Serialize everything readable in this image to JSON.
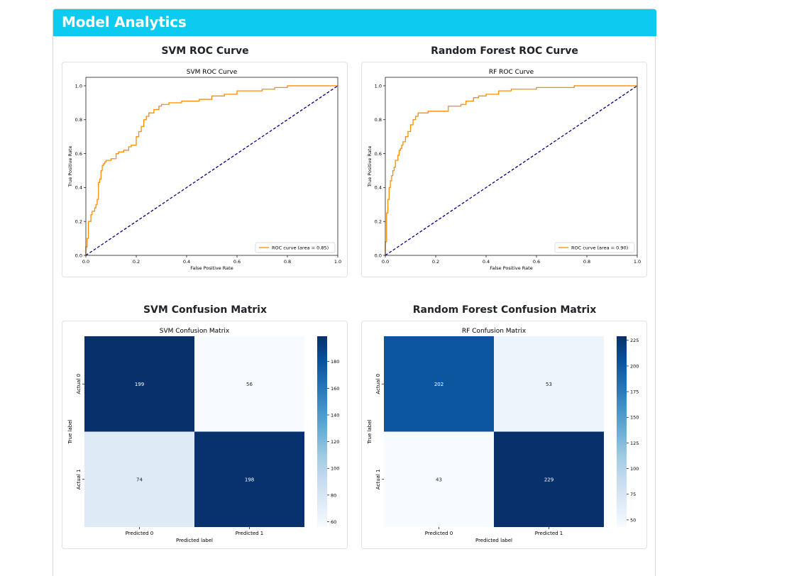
{
  "header": {
    "title": "Model Analytics"
  },
  "sections": {
    "svm_roc_title": "SVM ROC Curve",
    "rf_roc_title": "Random Forest ROC Curve",
    "svm_cm_title": "SVM Confusion Matrix",
    "rf_cm_title": "Random Forest Confusion Matrix"
  },
  "colors": {
    "header_bg": "#0dcaf0",
    "roc_line": "#ff8c00",
    "diagonal": "#000080"
  },
  "chart_data": [
    {
      "type": "line",
      "id": "svm_roc",
      "title": "SVM ROC Curve",
      "xlabel": "False Positive Rate",
      "ylabel": "True Positive Rate",
      "xlim": [
        0,
        1
      ],
      "ylim": [
        0,
        1.05
      ],
      "x_ticks": [
        "0.0",
        "0.2",
        "0.4",
        "0.6",
        "0.8",
        "1.0"
      ],
      "y_ticks": [
        "0.0",
        "0.2",
        "0.4",
        "0.6",
        "0.8",
        "1.0"
      ],
      "legend": "lower right",
      "series": [
        {
          "name": "ROC curve (area = 0.85)",
          "x": [
            0,
            0,
            0.005,
            0.01,
            0.01,
            0.02,
            0.025,
            0.035,
            0.04,
            0.045,
            0.05,
            0.05,
            0.055,
            0.06,
            0.065,
            0.07,
            0.075,
            0.08,
            0.09,
            0.1,
            0.12,
            0.13,
            0.15,
            0.17,
            0.18,
            0.2,
            0.21,
            0.22,
            0.23,
            0.24,
            0.25,
            0.27,
            0.29,
            0.3,
            0.33,
            0.35,
            0.38,
            0.4,
            0.45,
            0.5,
            0.55,
            0.6,
            0.65,
            0.7,
            0.75,
            0.8,
            0.9,
            1.0
          ],
          "y": [
            0,
            0.05,
            0.1,
            0.15,
            0.2,
            0.24,
            0.26,
            0.28,
            0.3,
            0.33,
            0.38,
            0.43,
            0.45,
            0.5,
            0.53,
            0.54,
            0.55,
            0.56,
            0.56,
            0.57,
            0.6,
            0.61,
            0.62,
            0.64,
            0.65,
            0.7,
            0.73,
            0.76,
            0.8,
            0.82,
            0.84,
            0.86,
            0.88,
            0.89,
            0.9,
            0.9,
            0.91,
            0.91,
            0.92,
            0.94,
            0.95,
            0.97,
            0.97,
            0.98,
            0.99,
            1.0,
            1.0,
            1.0
          ]
        },
        {
          "name": "",
          "x": [
            0,
            1
          ],
          "y": [
            0,
            1
          ],
          "style": "dashed"
        }
      ]
    },
    {
      "type": "line",
      "id": "rf_roc",
      "title": "RF ROC Curve",
      "xlabel": "False Positive Rate",
      "ylabel": "True Positive Rate",
      "xlim": [
        0,
        1
      ],
      "ylim": [
        0,
        1.05
      ],
      "x_ticks": [
        "0.0",
        "0.2",
        "0.4",
        "0.6",
        "0.8",
        "1.0"
      ],
      "y_ticks": [
        "0.0",
        "0.2",
        "0.4",
        "0.6",
        "0.8",
        "1.0"
      ],
      "legend": "lower right",
      "series": [
        {
          "name": "ROC curve (area = 0.90)",
          "x": [
            0,
            0,
            0.005,
            0.005,
            0.01,
            0.015,
            0.02,
            0.025,
            0.03,
            0.035,
            0.04,
            0.05,
            0.055,
            0.06,
            0.065,
            0.07,
            0.08,
            0.09,
            0.1,
            0.11,
            0.12,
            0.13,
            0.15,
            0.17,
            0.2,
            0.25,
            0.3,
            0.32,
            0.35,
            0.37,
            0.4,
            0.45,
            0.5,
            0.55,
            0.6,
            0.75,
            1.0
          ],
          "y": [
            0,
            0.08,
            0.18,
            0.25,
            0.33,
            0.4,
            0.44,
            0.47,
            0.5,
            0.52,
            0.56,
            0.59,
            0.62,
            0.63,
            0.65,
            0.67,
            0.7,
            0.73,
            0.77,
            0.8,
            0.82,
            0.84,
            0.84,
            0.85,
            0.85,
            0.88,
            0.89,
            0.91,
            0.93,
            0.94,
            0.95,
            0.97,
            0.98,
            0.98,
            0.99,
            1.0,
            1.0
          ]
        },
        {
          "name": "",
          "x": [
            0,
            1
          ],
          "y": [
            0,
            1
          ],
          "style": "dashed"
        }
      ]
    },
    {
      "type": "heatmap",
      "id": "svm_cm",
      "title": "SVM Confusion Matrix",
      "xlabel": "Predicted label",
      "ylabel": "True label",
      "x_categories": [
        "Predicted 0",
        "Predicted 1"
      ],
      "y_categories": [
        "Actual 0",
        "Actual 1"
      ],
      "values": [
        [
          199,
          56
        ],
        [
          74,
          198
        ]
      ],
      "colorbar_ticks": [
        60,
        80,
        100,
        120,
        140,
        160,
        180
      ],
      "colorbar_range": [
        56,
        199
      ],
      "colormap": "Blues"
    },
    {
      "type": "heatmap",
      "id": "rf_cm",
      "title": "RF Confusion Matrix",
      "xlabel": "Predicted label",
      "ylabel": "True label",
      "x_categories": [
        "Predicted 0",
        "Predicted 1"
      ],
      "y_categories": [
        "Actual 0",
        "Actual 1"
      ],
      "values": [
        [
          202,
          53
        ],
        [
          43,
          229
        ]
      ],
      "colorbar_ticks": [
        50,
        75,
        100,
        125,
        150,
        175,
        200,
        225
      ],
      "colorbar_range": [
        43,
        229
      ],
      "colormap": "Blues"
    }
  ]
}
